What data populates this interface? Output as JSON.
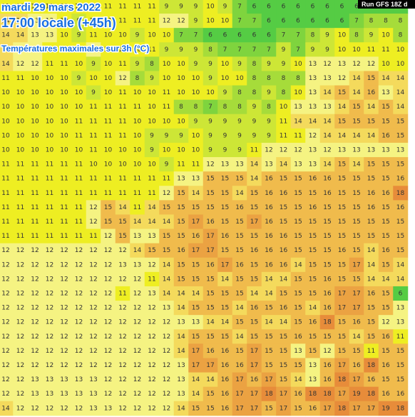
{
  "header": {
    "date": "mardi 29 mars 2022",
    "time": "17:00 locale (+45h)",
    "subtitle": "Températures maximales sur 3h (°C)",
    "run": "Run GFS 18Z d"
  },
  "grid": [
    [
      11,
      11,
      11,
      11,
      11,
      11,
      11,
      11,
      11,
      11,
      11,
      9,
      9,
      9,
      10,
      9,
      7,
      6,
      6,
      6,
      6,
      6,
      6,
      6,
      6,
      6,
      6,
      6
    ],
    [
      14,
      14,
      13,
      13,
      10,
      9,
      11,
      11,
      11,
      11,
      11,
      12,
      12,
      9,
      10,
      10,
      7,
      7,
      6,
      6,
      6,
      6,
      6,
      6,
      7,
      8,
      8,
      8
    ],
    [
      14,
      14,
      13,
      13,
      10,
      9,
      11,
      10,
      10,
      9,
      10,
      10,
      7,
      7,
      6,
      6,
      6,
      6,
      6,
      7,
      7,
      8,
      9,
      10,
      8,
      9,
      10,
      8
    ],
    [
      14,
      12,
      12,
      11,
      11,
      10,
      12,
      10,
      11,
      10,
      11,
      9,
      9,
      9,
      8,
      7,
      7,
      7,
      7,
      9,
      7,
      9,
      9,
      10,
      10,
      11,
      11,
      10
    ],
    [
      14,
      12,
      12,
      11,
      11,
      10,
      9,
      10,
      11,
      9,
      8,
      10,
      10,
      9,
      9,
      10,
      9,
      8,
      9,
      9,
      10,
      13,
      12,
      13,
      12,
      12,
      10,
      10
    ],
    [
      11,
      11,
      10,
      10,
      10,
      9,
      10,
      10,
      12,
      8,
      9,
      10,
      10,
      10,
      9,
      10,
      10,
      8,
      8,
      8,
      8,
      13,
      13,
      12,
      14,
      15,
      14,
      14
    ],
    [
      10,
      10,
      10,
      10,
      10,
      10,
      9,
      10,
      11,
      10,
      10,
      11,
      10,
      10,
      10,
      9,
      8,
      8,
      9,
      8,
      10,
      13,
      14,
      15,
      14,
      16,
      13,
      14
    ],
    [
      10,
      10,
      10,
      10,
      10,
      10,
      11,
      11,
      11,
      11,
      10,
      11,
      8,
      8,
      7,
      8,
      8,
      9,
      8,
      10,
      13,
      13,
      13,
      14,
      15,
      14,
      15,
      14
    ],
    [
      10,
      10,
      10,
      10,
      10,
      11,
      11,
      11,
      11,
      10,
      10,
      10,
      10,
      9,
      9,
      9,
      9,
      9,
      9,
      11,
      14,
      14,
      14,
      15,
      15,
      15,
      15,
      15
    ],
    [
      10,
      10,
      10,
      10,
      10,
      11,
      11,
      11,
      11,
      10,
      9,
      9,
      9,
      10,
      9,
      9,
      9,
      9,
      9,
      11,
      11,
      12,
      14,
      14,
      14,
      14,
      16,
      15
    ],
    [
      10,
      10,
      10,
      10,
      10,
      10,
      11,
      10,
      10,
      10,
      9,
      10,
      10,
      10,
      9,
      9,
      9,
      11,
      12,
      12,
      12,
      13,
      12,
      13,
      13,
      13,
      13,
      13
    ],
    [
      11,
      11,
      11,
      11,
      11,
      11,
      10,
      10,
      10,
      10,
      10,
      9,
      11,
      11,
      12,
      13,
      13,
      14,
      13,
      14,
      13,
      13,
      14,
      15,
      14,
      15,
      15,
      15
    ],
    [
      11,
      11,
      11,
      11,
      11,
      11,
      11,
      11,
      11,
      11,
      11,
      11,
      13,
      13,
      15,
      15,
      15,
      14,
      16,
      15,
      15,
      16,
      16,
      15,
      15,
      15,
      15,
      16
    ],
    [
      11,
      11,
      11,
      11,
      11,
      11,
      11,
      11,
      11,
      11,
      11,
      12,
      15,
      14,
      15,
      15,
      14,
      15,
      16,
      16,
      15,
      15,
      16,
      15,
      15,
      16,
      16,
      18
    ],
    [
      11,
      11,
      11,
      11,
      11,
      11,
      12,
      15,
      14,
      11,
      14,
      15,
      15,
      15,
      15,
      15,
      16,
      15,
      16,
      15,
      15,
      16,
      15,
      15,
      15,
      16,
      15,
      16
    ],
    [
      11,
      11,
      11,
      11,
      11,
      11,
      12,
      15,
      15,
      14,
      14,
      14,
      15,
      17,
      16,
      15,
      15,
      17,
      16,
      15,
      15,
      15,
      15,
      15,
      15,
      15,
      15,
      15
    ],
    [
      11,
      11,
      11,
      11,
      11,
      11,
      11,
      12,
      15,
      13,
      13,
      15,
      15,
      16,
      17,
      16,
      15,
      15,
      16,
      16,
      15,
      15,
      15,
      15,
      15,
      15,
      15,
      15
    ],
    [
      12,
      12,
      12,
      12,
      12,
      12,
      12,
      12,
      12,
      14,
      15,
      15,
      16,
      17,
      17,
      15,
      15,
      16,
      16,
      16,
      15,
      15,
      15,
      16,
      15,
      14,
      16,
      15
    ],
    [
      12,
      12,
      12,
      12,
      12,
      12,
      12,
      12,
      13,
      13,
      12,
      14,
      15,
      15,
      16,
      17,
      16,
      15,
      16,
      16,
      14,
      15,
      15,
      15,
      17,
      14,
      15,
      14
    ],
    [
      12,
      12,
      12,
      12,
      12,
      12,
      12,
      12,
      12,
      12,
      11,
      14,
      15,
      15,
      15,
      14,
      15,
      15,
      14,
      14,
      15,
      15,
      16,
      15,
      15,
      14,
      14,
      14
    ],
    [
      12,
      12,
      12,
      12,
      12,
      12,
      12,
      12,
      11,
      12,
      13,
      14,
      14,
      14,
      15,
      15,
      15,
      14,
      14,
      15,
      15,
      15,
      16,
      17,
      17,
      16,
      15,
      6
    ],
    [
      12,
      12,
      12,
      12,
      12,
      12,
      12,
      12,
      12,
      12,
      12,
      13,
      14,
      15,
      15,
      15,
      14,
      16,
      15,
      16,
      15,
      14,
      16,
      17,
      17,
      15,
      15,
      13
    ],
    [
      12,
      12,
      12,
      12,
      12,
      12,
      12,
      12,
      12,
      12,
      12,
      12,
      13,
      13,
      14,
      14,
      15,
      15,
      14,
      14,
      15,
      16,
      18,
      15,
      16,
      15,
      12,
      13
    ],
    [
      12,
      12,
      12,
      12,
      12,
      12,
      12,
      12,
      12,
      12,
      12,
      12,
      14,
      15,
      15,
      15,
      14,
      15,
      15,
      15,
      16,
      15,
      15,
      15,
      14,
      15,
      16,
      11
    ],
    [
      12,
      12,
      12,
      12,
      12,
      12,
      12,
      12,
      12,
      12,
      12,
      12,
      14,
      17,
      16,
      16,
      15,
      17,
      15,
      15,
      13,
      15,
      12,
      15,
      15,
      11,
      15,
      15
    ],
    [
      12,
      12,
      12,
      12,
      12,
      12,
      12,
      12,
      12,
      12,
      12,
      12,
      13,
      17,
      17,
      16,
      16,
      17,
      15,
      15,
      15,
      13,
      16,
      17,
      16,
      18,
      16,
      15
    ],
    [
      12,
      12,
      13,
      13,
      13,
      13,
      13,
      12,
      12,
      12,
      12,
      12,
      13,
      14,
      14,
      16,
      17,
      16,
      17,
      15,
      14,
      13,
      16,
      18,
      17,
      16,
      15,
      15
    ],
    [
      12,
      12,
      13,
      13,
      13,
      13,
      13,
      12,
      12,
      12,
      12,
      12,
      13,
      14,
      15,
      16,
      17,
      17,
      18,
      17,
      16,
      18,
      18,
      17,
      19,
      18,
      16,
      16
    ],
    [
      14,
      12,
      12,
      12,
      12,
      12,
      13,
      13,
      12,
      12,
      12,
      12,
      14,
      15,
      15,
      16,
      17,
      17,
      15,
      17,
      15,
      16,
      17,
      18,
      17,
      17,
      19,
      18
    ]
  ]
}
